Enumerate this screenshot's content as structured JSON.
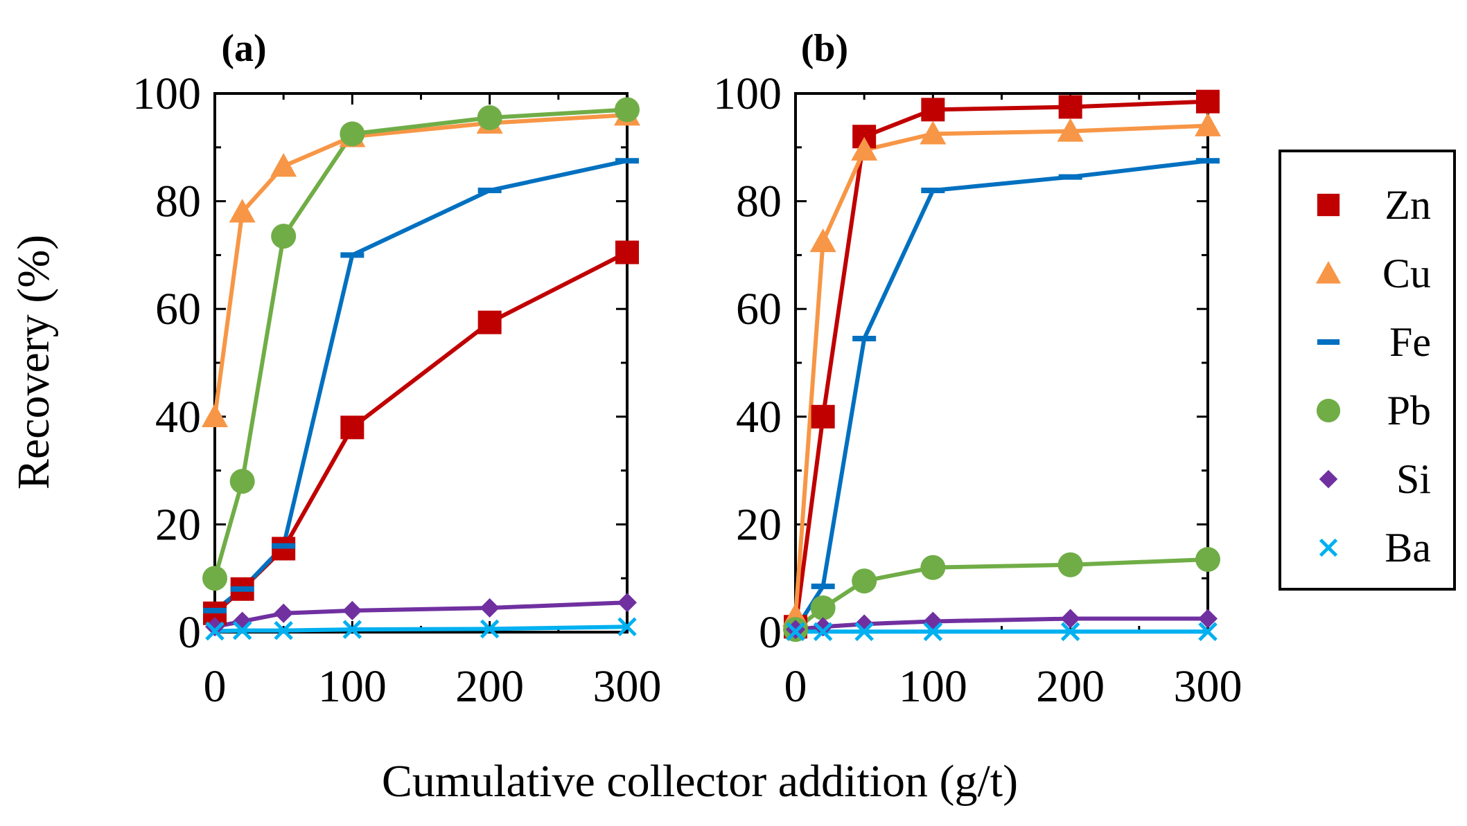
{
  "chart_data": {
    "type": "line",
    "xlabel": "Cumulative collector addition (g/t)",
    "ylabel": "Recovery (%)",
    "xlim": [
      0,
      300
    ],
    "ylim": [
      0,
      100
    ],
    "xticks": [
      0,
      100,
      200,
      300
    ],
    "yticks": [
      0,
      20,
      40,
      60,
      80,
      100
    ],
    "grid": false,
    "legend_position": "right",
    "legend": [
      {
        "name": "Zn",
        "color": "#C00000",
        "marker": "square"
      },
      {
        "name": "Cu",
        "color": "#F79646",
        "marker": "triangle"
      },
      {
        "name": "Fe",
        "color": "#0070C0",
        "marker": "dash"
      },
      {
        "name": "Pb",
        "color": "#70AD47",
        "marker": "circle"
      },
      {
        "name": "Si",
        "color": "#7030A0",
        "marker": "diamond"
      },
      {
        "name": "Ba",
        "color": "#00B0F0",
        "marker": "x"
      }
    ],
    "panels": [
      {
        "label": "(a)",
        "x": [
          0,
          20,
          50,
          100,
          200,
          300
        ],
        "series": [
          {
            "name": "Zn",
            "values": [
              3.5,
              8,
              15.5,
              38,
              57.5,
              70.5
            ]
          },
          {
            "name": "Cu",
            "values": [
              40,
              78,
              86.5,
              92,
              94.5,
              96
            ]
          },
          {
            "name": "Fe",
            "values": [
              4,
              8,
              16,
              70,
              82,
              87.5
            ]
          },
          {
            "name": "Pb",
            "values": [
              10,
              28,
              73.5,
              92.5,
              95.5,
              97
            ]
          },
          {
            "name": "Si",
            "values": [
              1,
              2,
              3.5,
              4,
              4.5,
              5.5
            ]
          },
          {
            "name": "Ba",
            "values": [
              0.2,
              0.3,
              0.3,
              0.5,
              0.6,
              1
            ]
          }
        ]
      },
      {
        "label": "(b)",
        "x": [
          0,
          20,
          50,
          100,
          200,
          300
        ],
        "series": [
          {
            "name": "Zn",
            "values": [
              1,
              40,
              92,
              97,
              97.5,
              98.5
            ]
          },
          {
            "name": "Cu",
            "values": [
              3,
              72.5,
              89.5,
              92.5,
              93,
              94
            ]
          },
          {
            "name": "Fe",
            "values": [
              0.5,
              8.5,
              54.5,
              82,
              84.5,
              87.5
            ]
          },
          {
            "name": "Pb",
            "values": [
              0.5,
              4.5,
              9.5,
              12,
              12.5,
              13.5
            ]
          },
          {
            "name": "Si",
            "values": [
              0.5,
              1,
              1.5,
              2,
              2.5,
              2.5
            ]
          },
          {
            "name": "Ba",
            "values": [
              0.1,
              0.1,
              0.1,
              0.1,
              0.1,
              0.1
            ]
          }
        ]
      }
    ]
  }
}
